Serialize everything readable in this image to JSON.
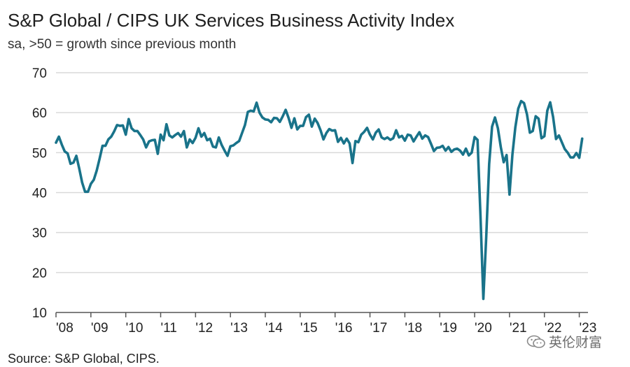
{
  "colors": {
    "line": "#19738a",
    "grid": "#d9d9d9",
    "axis": "#555555"
  },
  "watermark": {
    "text": "英伦财富",
    "icon": "wechat-icon"
  },
  "source": "Source: S&P Global, CIPS.",
  "chart_data": {
    "type": "line",
    "title": "S&P Global / CIPS UK Services Business Activity Index",
    "subtitle": "sa, >50 = growth since previous month",
    "xlabel": "",
    "ylabel": "",
    "ylim": [
      10,
      70
    ],
    "yticks": [
      10,
      20,
      30,
      40,
      50,
      60,
      70
    ],
    "xlim": [
      2008,
      2023.25
    ],
    "xticks": [
      {
        "value": 2008,
        "label": "'08"
      },
      {
        "value": 2009,
        "label": "'09"
      },
      {
        "value": 2010,
        "label": "'10"
      },
      {
        "value": 2011,
        "label": "'11"
      },
      {
        "value": 2012,
        "label": "'12"
      },
      {
        "value": 2013,
        "label": "'13"
      },
      {
        "value": 2014,
        "label": "'14"
      },
      {
        "value": 2015,
        "label": "'15"
      },
      {
        "value": 2016,
        "label": "'16"
      },
      {
        "value": 2017,
        "label": "'17"
      },
      {
        "value": 2018,
        "label": "'18"
      },
      {
        "value": 2019,
        "label": "'19"
      },
      {
        "value": 2020,
        "label": "'20"
      },
      {
        "value": 2021,
        "label": "'21"
      },
      {
        "value": 2022,
        "label": "'22"
      },
      {
        "value": 2023,
        "label": "'23"
      }
    ],
    "grid": true,
    "series": [
      {
        "name": "UK Services Business Activity Index",
        "start": "2008-01",
        "frequency": "monthly",
        "values": [
          52.5,
          54.0,
          52.0,
          50.3,
          49.8,
          47.2,
          47.5,
          49.2,
          46.0,
          42.5,
          40.2,
          40.2,
          42.2,
          43.2,
          45.5,
          48.5,
          51.7,
          51.7,
          53.3,
          54.0,
          55.3,
          56.9,
          56.7,
          56.8,
          54.5,
          58.4,
          56.1,
          55.4,
          55.4,
          54.4,
          53.3,
          51.3,
          52.8,
          53.1,
          53.2,
          49.7,
          54.5,
          53.1,
          57.1,
          54.3,
          53.8,
          54.4,
          54.9,
          54.0,
          55.4,
          51.3,
          53.3,
          52.4,
          53.7,
          56.1,
          54.0,
          54.9,
          53.1,
          53.5,
          51.5,
          51.3,
          53.8,
          51.9,
          50.5,
          49.2,
          51.6,
          51.8,
          52.4,
          52.9,
          54.9,
          56.9,
          60.2,
          60.5,
          60.3,
          62.5,
          60.0,
          58.8,
          58.3,
          58.2,
          57.6,
          58.7,
          58.6,
          57.7,
          59.1,
          60.7,
          58.7,
          56.2,
          58.6,
          55.8,
          56.7,
          56.7,
          58.9,
          59.5,
          56.5,
          58.5,
          57.4,
          55.6,
          53.3,
          54.9,
          55.9,
          55.5,
          55.6,
          52.7,
          53.7,
          52.3,
          53.5,
          52.3,
          47.4,
          52.9,
          52.6,
          54.5,
          55.2,
          56.2,
          54.5,
          53.3,
          55.0,
          55.8,
          53.8,
          53.4,
          53.8,
          53.2,
          53.6,
          55.6,
          53.8,
          54.2,
          53.0,
          54.5,
          54.3,
          52.8,
          54.0,
          55.1,
          53.5,
          54.3,
          53.9,
          52.2,
          50.4,
          51.2,
          51.3,
          51.7,
          50.5,
          51.4,
          50.2,
          50.8,
          51.0,
          50.5,
          49.5,
          51.0,
          49.3,
          50.0,
          53.9,
          53.2,
          34.5,
          13.4,
          29.0,
          47.1,
          56.5,
          58.8,
          56.1,
          51.4,
          47.6,
          49.4,
          39.5,
          49.5,
          56.3,
          61.0,
          62.9,
          62.4,
          59.6,
          55.0,
          55.4,
          59.1,
          58.5,
          53.6,
          54.1,
          60.5,
          62.6,
          58.9,
          53.4,
          54.3,
          52.6,
          50.9,
          50.0,
          48.8,
          48.8,
          49.9,
          48.7,
          53.5
        ]
      }
    ]
  }
}
